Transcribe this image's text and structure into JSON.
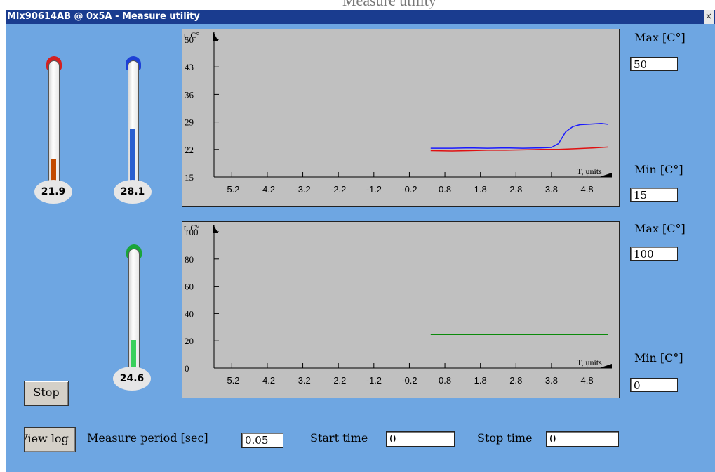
{
  "background_caption": "Measure utility",
  "window": {
    "title": "Mlx90614AB @ 0x5A - Measure utility",
    "close_glyph": "×"
  },
  "thermometers": [
    {
      "id": "t1",
      "value": "21.9",
      "level": 0.2,
      "color": "#c24a00",
      "cap_color": "#d42020"
    },
    {
      "id": "t2",
      "value": "28.1",
      "level": 0.47,
      "color": "#2a5fd0",
      "cap_color": "#1d3fd6"
    },
    {
      "id": "t3",
      "value": "24.6",
      "level": 0.2,
      "color": "#39d05c",
      "cap_color": "#1aa53a"
    }
  ],
  "charts": {
    "top": {
      "ylabel": "t, C°",
      "xlabel": "T, units",
      "max_label": "Max [C°]",
      "max_value": "50",
      "min_label": "Min [C°]",
      "min_value": "15"
    },
    "bottom": {
      "ylabel": "t, C°",
      "xlabel": "T, units",
      "max_label": "Max [C°]",
      "max_value": "100",
      "min_label": "Min [C°]",
      "min_value": "0"
    }
  },
  "chart_data": [
    {
      "type": "line",
      "ylabel": "t, C°",
      "xlabel": "T, units",
      "ylim": [
        15,
        50
      ],
      "yticks": [
        "15",
        "22",
        "29",
        "36",
        "43",
        "50"
      ],
      "xticks": [
        "-5.2",
        "-4.2",
        "-3.2",
        "-2.2",
        "-1.2",
        "-0.2",
        "0.8",
        "1.8",
        "2.8",
        "3.8",
        "4.8"
      ],
      "xlim": [
        -5.7,
        5.5
      ],
      "series": [
        {
          "color": "#1a1aff",
          "x": [
            0.4,
            1.0,
            1.5,
            2.0,
            2.5,
            3.0,
            3.5,
            3.8,
            4.0,
            4.1,
            4.2,
            4.4,
            4.6,
            4.8,
            5.0,
            5.2,
            5.4
          ],
          "y": [
            22.3,
            22.3,
            22.4,
            22.3,
            22.4,
            22.3,
            22.4,
            22.5,
            23.5,
            25.0,
            26.5,
            27.8,
            28.3,
            28.4,
            28.5,
            28.6,
            28.4
          ]
        },
        {
          "color": "#e01010",
          "x": [
            0.4,
            1.0,
            1.5,
            2.0,
            2.5,
            3.0,
            3.5,
            4.0,
            4.5,
            5.0,
            5.4
          ],
          "y": [
            21.7,
            21.6,
            21.7,
            21.8,
            21.8,
            21.9,
            22.0,
            22.0,
            22.2,
            22.4,
            22.6
          ]
        }
      ]
    },
    {
      "type": "line",
      "ylabel": "t, C°",
      "xlabel": "T, units",
      "ylim": [
        0,
        100
      ],
      "yticks": [
        "0",
        "20",
        "40",
        "60",
        "80",
        "100"
      ],
      "xticks": [
        "-5.2",
        "-4.2",
        "-3.2",
        "-2.2",
        "-1.2",
        "-0.2",
        "0.8",
        "1.8",
        "2.8",
        "3.8",
        "4.8"
      ],
      "xlim": [
        -5.7,
        5.5
      ],
      "series": [
        {
          "color": "#0a8a0a",
          "x": [
            0.4,
            5.4
          ],
          "y": [
            24.6,
            24.6
          ]
        }
      ]
    }
  ],
  "buttons": {
    "stop": "Stop",
    "view_log": "View log"
  },
  "bottom_bar": {
    "measure_period_label": "Measure period [sec]",
    "measure_period_value": "0.05",
    "start_time_label": "Start time",
    "start_time_value": "0",
    "stop_time_label": "Stop time",
    "stop_time_value": "0"
  }
}
